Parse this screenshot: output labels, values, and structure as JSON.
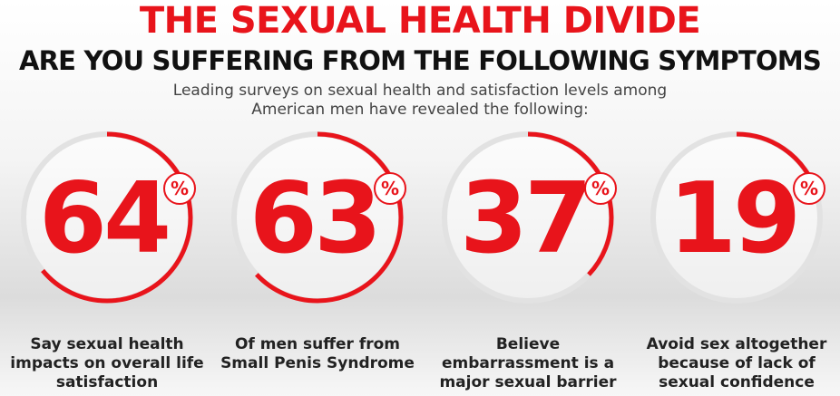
{
  "header": {
    "title": "THE SEXUAL HEALTH DIVIDE",
    "subtitle": "ARE YOU SUFFERING FROM THE FOLLOWING SYMPTOMS",
    "intro": "Leading surveys on sexual health and satisfaction levels among American men have revealed the following:"
  },
  "unit": "%",
  "stats": [
    {
      "value": 64,
      "caption": "Say sexual health impacts on overall life satisfaction"
    },
    {
      "value": 63,
      "caption": "Of men suffer from Small Penis Syndrome"
    },
    {
      "value": 37,
      "caption": "Believe embarrassment is a major sexual barrier"
    },
    {
      "value": 19,
      "caption": "Avoid sex altogether because of lack of sexual confidence"
    }
  ]
}
